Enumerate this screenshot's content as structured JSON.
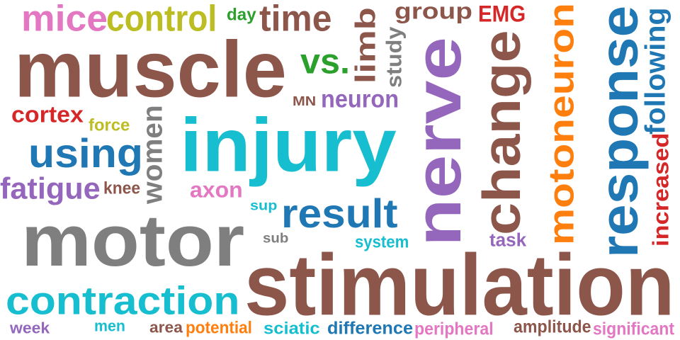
{
  "words": [
    {
      "id": "muscle",
      "text": "muscle",
      "color": "#8c564b",
      "rotated": false
    },
    {
      "id": "stimulation",
      "text": "stimulation",
      "color": "#8c564b",
      "rotated": false
    },
    {
      "id": "motor",
      "text": "motor",
      "color": "#7f7f7f",
      "rotated": false
    },
    {
      "id": "injury",
      "text": "injury",
      "color": "#17becf",
      "rotated": false
    },
    {
      "id": "nerve",
      "text": "nerve",
      "color": "#9467bd",
      "rotated": true
    },
    {
      "id": "response",
      "text": "response",
      "color": "#1f77b4",
      "rotated": true
    },
    {
      "id": "change",
      "text": "change",
      "color": "#8c564b",
      "rotated": true
    },
    {
      "id": "contraction",
      "text": "contraction",
      "color": "#17becf",
      "rotated": false
    },
    {
      "id": "motoneuron",
      "text": "motoneuron",
      "color": "#ff7f0e",
      "rotated": true
    },
    {
      "id": "result",
      "text": "result",
      "color": "#1f77b4",
      "rotated": false
    },
    {
      "id": "using",
      "text": "using",
      "color": "#1f77b4",
      "rotated": false
    },
    {
      "id": "control",
      "text": "control",
      "color": "#bcbd22",
      "rotated": false
    },
    {
      "id": "mice",
      "text": "mice",
      "color": "#e377c2",
      "rotated": false
    },
    {
      "id": "time",
      "text": "time",
      "color": "#8c564b",
      "rotated": false
    },
    {
      "id": "vs",
      "text": "vs.",
      "color": "#2ca02c",
      "rotated": false
    },
    {
      "id": "limb",
      "text": "limb",
      "color": "#8c564b",
      "rotated": true
    },
    {
      "id": "fatigue",
      "text": "fatigue",
      "color": "#9467bd",
      "rotated": false
    },
    {
      "id": "following",
      "text": "following",
      "color": "#1f77b4",
      "rotated": true
    },
    {
      "id": "increased",
      "text": "increased",
      "color": "#d62728",
      "rotated": true
    },
    {
      "id": "group",
      "text": "group",
      "color": "#8c564b",
      "rotated": false
    },
    {
      "id": "neuron",
      "text": "neuron",
      "color": "#9467bd",
      "rotated": false
    },
    {
      "id": "women",
      "text": "women",
      "color": "#7f7f7f",
      "rotated": true
    },
    {
      "id": "cortex",
      "text": "cortex",
      "color": "#d62728",
      "rotated": false
    },
    {
      "id": "emg",
      "text": "EMG",
      "color": "#d62728",
      "rotated": false
    },
    {
      "id": "study",
      "text": "study",
      "color": "#7f7f7f",
      "rotated": true
    },
    {
      "id": "axon",
      "text": "axon",
      "color": "#e377c2",
      "rotated": false
    },
    {
      "id": "day",
      "text": "day",
      "color": "#2ca02c",
      "rotated": false
    },
    {
      "id": "force",
      "text": "force",
      "color": "#bcbd22",
      "rotated": false
    },
    {
      "id": "knee",
      "text": "knee",
      "color": "#8c564b",
      "rotated": false
    },
    {
      "id": "mn",
      "text": "MN",
      "color": "#8c564b",
      "rotated": false
    },
    {
      "id": "sup",
      "text": "sup",
      "color": "#17becf",
      "rotated": false
    },
    {
      "id": "sub",
      "text": "sub",
      "color": "#7f7f7f",
      "rotated": false
    },
    {
      "id": "system",
      "text": "system",
      "color": "#17becf",
      "rotated": false
    },
    {
      "id": "task",
      "text": "task",
      "color": "#9467bd",
      "rotated": false
    },
    {
      "id": "week",
      "text": "week",
      "color": "#9467bd",
      "rotated": false
    },
    {
      "id": "men",
      "text": "men",
      "color": "#17becf",
      "rotated": false
    },
    {
      "id": "area",
      "text": "area",
      "color": "#8c564b",
      "rotated": false
    },
    {
      "id": "potential",
      "text": "potential",
      "color": "#ff7f0e",
      "rotated": false
    },
    {
      "id": "sciatic",
      "text": "sciatic",
      "color": "#17becf",
      "rotated": false
    },
    {
      "id": "difference",
      "text": "difference",
      "color": "#1f77b4",
      "rotated": false
    },
    {
      "id": "peripheral",
      "text": "peripheral",
      "color": "#e377c2",
      "rotated": false
    },
    {
      "id": "amplitude",
      "text": "amplitude",
      "color": "#8c564b",
      "rotated": false
    },
    {
      "id": "significant",
      "text": "significant",
      "color": "#e377c2",
      "rotated": false
    }
  ]
}
